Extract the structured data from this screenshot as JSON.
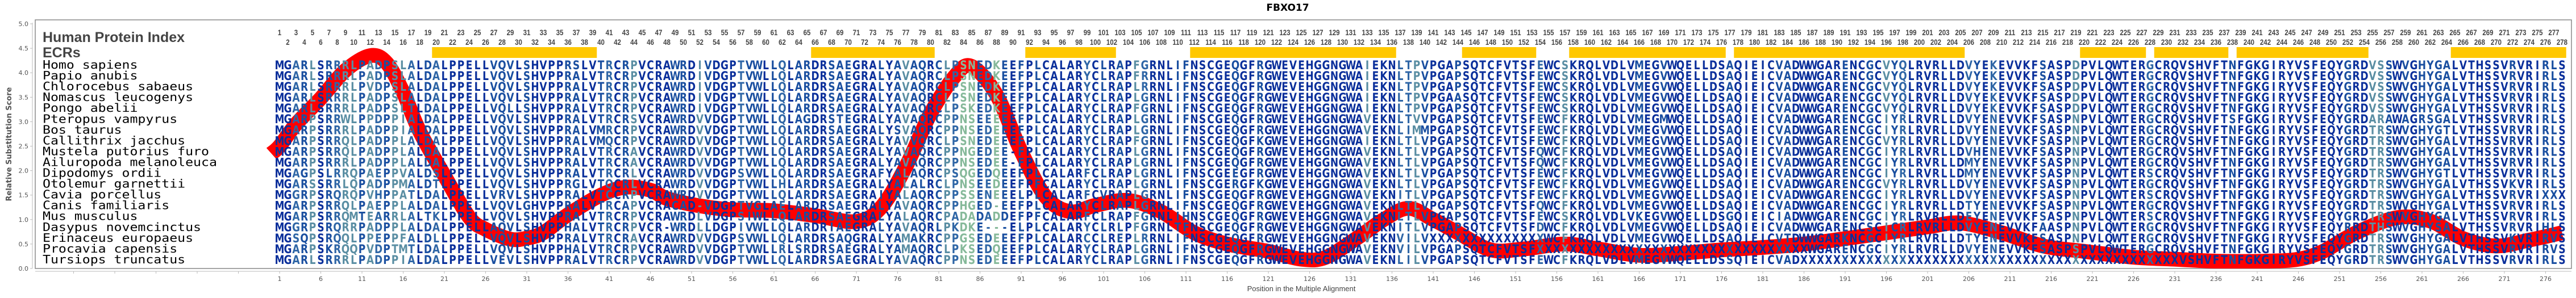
{
  "chart_data": {
    "type": "line",
    "title": "FBXO17",
    "xlabel": "Position in the Multiple Alignment",
    "ylabel": "Relative Substitution Score",
    "ylim": [
      0,
      5
    ],
    "y_ticks": [
      "0.0",
      "0.5",
      "1.0",
      "1.5",
      "2.0",
      "2.5",
      "3.0",
      "3.5",
      "4.0",
      "4.5",
      "5.0"
    ],
    "x_tick_start": 1,
    "x_tick_step": 5,
    "x_max": 278,
    "grid": false,
    "curve_color": "#ff0000",
    "series": [
      {
        "points": [
          [
            0,
            2.35
          ],
          [
            1,
            2.5
          ],
          [
            3,
            2.95
          ],
          [
            6,
            3.48
          ],
          [
            9,
            4.05
          ],
          [
            12,
            4.35
          ],
          [
            14,
            4.2
          ],
          [
            16,
            3.6
          ],
          [
            18,
            2.8
          ],
          [
            21,
            1.9
          ],
          [
            24,
            1.05
          ],
          [
            26,
            0.8
          ],
          [
            29,
            0.6
          ],
          [
            31,
            0.62
          ],
          [
            33,
            0.73
          ],
          [
            36,
            1.1
          ],
          [
            40,
            1.5
          ],
          [
            43,
            1.66
          ],
          [
            46,
            1.6
          ],
          [
            48,
            1.43
          ],
          [
            52,
            1.28
          ],
          [
            56,
            1.2
          ],
          [
            61,
            1.18
          ],
          [
            66,
            1.08
          ],
          [
            71,
            0.96
          ],
          [
            74,
            1.25
          ],
          [
            77,
            2.08
          ],
          [
            80,
            3.17
          ],
          [
            83,
            3.94
          ],
          [
            85,
            4.13
          ],
          [
            88,
            3.55
          ],
          [
            91,
            2.39
          ],
          [
            94,
            1.46
          ],
          [
            97,
            1.16
          ],
          [
            100,
            1.29
          ],
          [
            104,
            1.39
          ],
          [
            108,
            1.16
          ],
          [
            112,
            0.73
          ],
          [
            116,
            0.5
          ],
          [
            121,
            0.35
          ],
          [
            125,
            0.19
          ],
          [
            128,
            0.23
          ],
          [
            132,
            0.65
          ],
          [
            135,
            1.0
          ],
          [
            138,
            1.23
          ],
          [
            141,
            1.0
          ],
          [
            144,
            0.73
          ],
          [
            148,
            0.38
          ],
          [
            152,
            0.4
          ],
          [
            157,
            0.5
          ],
          [
            161,
            0.4
          ],
          [
            166,
            0.27
          ],
          [
            171,
            0.31
          ],
          [
            176,
            0.38
          ],
          [
            181,
            0.43
          ],
          [
            186,
            0.5
          ],
          [
            191,
            0.61
          ],
          [
            196,
            0.73
          ],
          [
            201,
            0.85
          ],
          [
            205,
            0.93
          ],
          [
            210,
            0.73
          ],
          [
            215,
            0.46
          ],
          [
            220,
            0.35
          ],
          [
            226,
            0.23
          ],
          [
            231,
            0.19
          ],
          [
            236,
            0.15
          ],
          [
            242,
            0.15
          ],
          [
            246,
            0.19
          ],
          [
            249,
            0.35
          ],
          [
            253,
            0.73
          ],
          [
            258,
            1.04
          ],
          [
            262,
            0.97
          ],
          [
            266,
            0.61
          ],
          [
            270,
            0.46
          ],
          [
            274,
            0.58
          ],
          [
            278,
            0.73
          ]
        ]
      }
    ],
    "human_index_label": "Human Protein Index",
    "human_index_range": [
      1,
      278
    ],
    "ecr_label": "ECRs",
    "ecr_color": "#ffc800",
    "ecrs": [
      [
        20,
        39
      ],
      [
        66,
        80
      ],
      [
        92,
        102
      ],
      [
        112,
        136
      ],
      [
        145,
        153
      ],
      [
        158,
        176
      ],
      [
        178,
        205
      ],
      [
        220,
        227
      ],
      [
        229,
        237
      ],
      [
        239,
        254
      ],
      [
        265,
        278
      ]
    ],
    "residue_palette": [
      "#0a2f9b",
      "#1a4fa0",
      "#2f66a6",
      "#5a8ea3",
      "#86b99a"
    ],
    "alignment": [
      {
        "species": "Homo sapiens",
        "sequence": "MGARLSRRRLPADPSLALDALPPELLVQVLSHVPPRSLVTRCRPVCRAWRDIVDGPTVWLLQLARDRSAEGRALYAVAQRCLPSNEDKEEFPLCALARYCLRAPFGRNLIFNSCGEQGFRGWEVEHGGNGWAIEKNLTPVPGAPSQTCFVTSFEWCSKRQLVDLVMEGVWQELLDSAQIEICVADWWGARENCGCVYQLRVRLLDVYEKEVVKFSASPDPVLQWTERGCRQVSHVFTNFGKGIRYVSFEQYGRDVSSWVGHYGALVTHSSVRVRIRLS"
      },
      {
        "species": "Papio anubis",
        "sequence": "MGARLSRRRLPADPSLALDALPPELLVQVLSHVPPRALVTRCRPVCRAWRDIVDGPTVWLLQLARDRSAEGRALYAVAQRCLPSNEDKEEFPLCALARYCLRAPFRRNLIFNSCGEQGFRGWEVEHGGNGWAIEKNLTPVPGAPSQTCFVTSFEWCSKRQLVDLVMEGVWQELLDSAQIEICVADWWGARENCGCVYQLRVRLLDVYEKEVVKFSASPDPVLQWTERGCRQVSHVFTNFGKGIRYVSFEQYGRDVSSWVGHYGALVTHSSVRVRIRLS"
      },
      {
        "species": "Chlorocebus sabaeus",
        "sequence": "MGARLSRRRLPVDPSLALDALPPELLVQVLSHVPPRALVTRCRPVCRAWRDIVDGPTVWLLQLARDRSAEGRALYAVAQRCLPSNEDKEEFPLCALARYCLRAPLRRNLIFNSCGEQGFRGWEVEHGGNGWAIEKNLTPVPGAPSQTCFVTSFEWCSKRQLVDLVMEGVWQELLDSAQIEICVADWWGARENCGCVYQLRVRLLDVYEKEVVKFSASPDPVLQWTERGCRQVSHVFTNFGKGIRYVSFEQYGRDVSSWVGHYGALVTHSSVRVRIRLS"
      },
      {
        "species": "Nomascus leucogenys",
        "sequence": "MGARLSRRRLPADPSLALDALPPELLVQVLSHVPPRALVTRCRPVCRAWRDIVDGPTVWLLQLARDRSAEGRALYAVAQRCLPSNEDKEEFPLCALARYCLRAPLGRNLIFNSCGEQGFRGWEVEHGGNGWAIEKNLTPVPGAASQTCFVTSFEWCSKRQLVDLVMEGVWQELLDSAQIEICVADWWGARENCGCVYQLRVRLLDVYEKEVVKFSASPDPVLQWTERGCRQVSHVFTNFGKGIRYVSFEQYGRDVSSWVGHYGALVTHSSVRVRIRLS"
      },
      {
        "species": "Pongo abelii",
        "sequence": "MGARLSRRRLPADPSLTLDALPPELLVQLLSHVPPRALVTRCRPVCRAWRDIVDGPTVWLLQLARDRSAEGRALYAVAQRCLPSKEDKEEFPLCALARYCLRAPFGRNLIFNSCGEQGFRGWEVEHGGNGWAIEKNLTPVPGAPSQTCFVTSFEWCSKRQLVDLVMEGVWQELLDSAQIEICVADWWGARENCGCVYQLRVRLLDVYEKEVVKFSASPDPVLQWTERGCRQVSHVFTNFGKGIRYVSFEQYGRDVSSWVGHYGALVTHSSVRVRIRLS"
      },
      {
        "species": "Pteropus vampyrus",
        "sequence": "MGARPSRRWLPPDPPIALDALPPELLVQVLSHVPPRALVTRCRSVCRAWRDVVDGPTVWLLQLAGDRSTEGRALYAVAQRCPPNSEEEEEFPLCALARYCLRAPLGRNLIFNSCGEQGFRGWEVEHGGNGWAVEKNLTVVPGAPSQTCFVTSFEWCFKRQLVDLVMEGMWQELLDSAQIEICVADWWGARENCGCIYRLRVRLLDVYENEVVKFSASPNPVLQWTERGCRQVSHVFTSFGKGIRYVSFEQYGRDARAWAGRSGALVTHSSVRVRIRLS"
      },
      {
        "species": "Bos taurus",
        "sequence": "MGARPSRRRLPADPPIALDALPPELLVQVLSHVPPRALVMRCRPVCRAWRDVVDGPTVWLLQLARDRSAEGRALYSVAQRCPPNSEDEEEFPLCALARYCLRAPLGRNLIFNSCGEQGFRGWEVEHGGNGWAVEKNLIMMPGAPSQTCFVTSFEWCFKRQLVDLVMEGVWQELLDSAQIEICVADWWGARENCGCIYRLRVRLLDVYENEVVKFSASPNPVLQWTERGCRQVSHVFTNFGKGIRYVSFEQYGRDTRSWVGHYGTLVTHSSVRVRIRLS"
      },
      {
        "species": "Callithrix jacchus",
        "sequence": "MGARPSRRQLPADPPLALDALPPELLVQVLSHVPPRALVMQCRPVCRAWRDVVDGPTVWLLQLARDRSAEGRALYAVVQRCLPSNEDEEEFPLCALARYCLRAPFGRNLIFNSCGEQGFKGWEVEHGGNGWAIEKNLTLVPGAPSQTCFVTSFEWCFKRQLVDLVMEGVWQELLDSAQIEICVADWWGARENCGCVYRLRVRLLDVYENEVVKFSASPNPVLQWTERGCRQVSHVFTNFGKGIRYVSFEQYGRDTRSWVGHYGALVTHSSVRVRIRLS"
      },
      {
        "species": "Mustela putorius furo",
        "sequence": "MGARPSRRQLPADPPLALDALPPELLVQVLSHVPPRALVTRCRAVCRAWRDVVDGPTVWLLQLARDRSAEGRALYAVAQRCPPNGEDEE-FPLCALARYCLRAPLGRNLIFNSCGEQGFRGWEVEHGGNGWAVEKNLTLVPGAPSQTCFVTSFQWCFKRQLVDLVMEGVWQELLDSAQIEICVADWWGARENCGCIYRLRVRLLDVHENEVVKFSASPNPVLQWTERGCRQVSHVFTNFGKGIRYVSFEQYGRDTRSWVGHYGALVTHSSVRVRIRLS"
      },
      {
        "species": "Ailuropoda melanoleuca",
        "sequence": "MGARPSRRRLPADPPLALDALPPELLVQVLSHVPPRALVTRCRAVCRAWRDVVDGPTVWLLQLARDRSAEGRALYAVAQRCPPNSEDEE-FPLCALARYCLRAPLGRNLIFNSCGEQGFRGWEVEHGGNGWAVEKNLTLVPGAPSQTCFVTSFQWCFKRQLVDLVMEGVWQELLDSAQIEICVADWWGARENCGCIYRLRVRLLDMYENEVVKFSASPNPVLQWTERGCRQVSHVFTNFGKGIRYVSFEQYGRDTRSWVGHYGALVTHSSVRVRIRLS"
      },
      {
        "species": "Dipodomys ordii",
        "sequence": "MGAGPSLRRQPAEPPVALDSLPPELLVQVLSHVPPRALVTRCRLVCRAWRDVVDGPSVWLLQLARDRSAEGRAFYALAQRCPSQGEDQEEFPLCALARFCLRAPLGRNLIFNSCGEEGFRGWEVEHGGNGWAVEKNLTLVPGAPSQTCFVTSFEWCFKRQLVDLVMEGVWQELLDSAQIEICVADWWGARENCGCIYRLRVRLLDMYENEVVKFSASPNPVLQWTERSCRQVSHVFTNFGKGIRYVSFEQYGRDTRSWVGHYGTLVTHSSVRVRIRLS"
      },
      {
        "species": "Otolemur garnettii",
        "sequence": "MGARSSRRLQPADPPMALDTLPPELLVQVLSHVPPRGLVTQCRLVCRAWRDVVDGPTVWLLHLARDRSAEGRALYALALRCLPNSEEDEEFPFCALARYCLRAPLGRNLIFNSCGERGFKGWEVEHGGNGWAVEKNLTLVPGAPSQTCFVTSFEWCFKRQLVDLVMEGVWQELLDSAQIEICVADWWGARENCGCVYRLRVRLLDVYENEVVKFSASPNPVLQWTERGCRQVSHVFTNFGKGIRYVSFEQYGRDTRSWVGHYGALVTHSSVKVRIRLS"
      },
      {
        "species": "Cavia porcellus",
        "sequence": "MGGRPSRQRQPVHPPATLDALPPELLVRVLSHVPPRALVTCCRPVCRAWRDVVDGPTVWLLQLARDRSAEGRAIYALAQRCPPSSENEEELPLCALARFCVRAPLGRNLIFNSCGEQGFRGWEVEHGGNGWAVEKNITLVPGAPSQTCFVTSFEWCFKRQLVDLVMEGVWQELLDSAQIEICVADWWGARENCGCIYRLRVRLLDVYENEVVKFSASPNPVLQWTERSCRQVSHVFTNFGKGIRYVSFEQYGRDTRSWVGHYGALVTHSSVRVRIXXX"
      },
      {
        "species": "Canis familiaris",
        "sequence": "MGARPSRRQLPAEPPLALDALPPELLVQVLGHVPPRALVTRCAPVCRACAD-VDGPTVGLAELARDRSAEGRALYAVAQRCPPHGED-EEFPLCALARYCLRAPLGRNLIFNSCGEQGFRGWEVEHGGNGWAVEKNLTLVPGAPSQTCFVTSFQWCFKRQLVDLVMEGVWQELLDSAQIEICVADWWGARENCGCIYRLRVRLLDTYENEVVKFSASPNPVLQWTERGCRQVSHVFTNFGKGIRYVSFEQYGRDTRSWVGHYGALVTHSSVRVRIRLS"
      },
      {
        "species": "Mus musculus",
        "sequence": "MGARPSRRQMTEARRLALTKLPPELLVQVLSHVPPRALVTRCRPVCRAWRDLVDGPSIWLLQLARDRSAEGRALYALAQRCPADADADDEFPFCALARFCLRAPFGRNLIHNSCGEQGFRGWEVEHGGNGWAVEKNLTLVPGAPSQTCFVTSFEWCSKRQLVDLVKEGVWQELLDSGQIEICIADWWGARENCGCIYRLRVRLLDEYENEVVKFSASPNPVLQWTERSCRQVSHVFTNFGKGIRYVSFEQYGRDTRSWVGHYGALVTHSSVRVRIRLS"
      },
      {
        "species": "Dasypus novemcinctus",
        "sequence": "MGGRPSRQRRPADPPLALDALPPELLAQVLSHVPPHALVTRCRPVCR-WRDLLDGPIVWLLQLARDRIAEGRALYAVAQRLPKDKE---ELPLCALARYCLRLPFGRNLTFNSCGEQGFRGWEVEHGGNGWAVEKNITLVPGAPSQTCFVTSFDWCFKRQLVDLVMEGVWQELLDSAQIEICVADWWGARENCSCICRLRVRLLDVYENEVVKFAASPNPVLQWTERGCRQVSHVFTNFGKGIRYVSFEQYRRDTHSWVGHYSALVTHSSVRVRIHLS"
      },
      {
        "species": "Erinaceus europaeus",
        "sequence": "MGSQPSRQQLPPEPPFALDLLPPELLVQVLSHVPPRALVTRCRAVCRAWRDVVDGPSVWLLQLARDRSAQGRALYAMAKRCPPGSEDEEEFPLCALARCCLREPLRRNLIFNSCGEQGFRGWEVEHGGNGWAVEKNVILVXXXXXXXXXXXXXXWCFKRQLVDLVMEGVWQELLDSAQIEICVTDWWGARKNCGCIYRLRVRLLDTYENEVVKFSASPNPVLQWTERGCRQVSHVFTNFGKGIRYVSFEQYGRDTRSWVGHYGALVTHSSVKVRIRVS"
      },
      {
        "species": "Procavia capensis",
        "sequence": "MGARPSKRQQPVDPTMTLDALPPELLVQVLSHVPPHALVTRCRPVCRAWRDVVDGPTVWLLRLSRDRSAEGRALYAMAQRCLPKSEDQEEFPLCALARYCLRAPLGRNLIFNSCGEQGFRGWEVEHGGNGWAVEKNVILVPGAPSQTCFVTSFXXXXXXXXXXXXXXXXXXXXXXXXXXXXXXXXXWGARENCGCIYRLRVRLLDVYENEVVKFSASPSPVLQWTERGCRQVSHVFTNFGKGIRYVSFEQYGRDTRSWVGHYGALVTHSSVRVRIRVS"
      },
      {
        "species": "Tursiops truncatus",
        "sequence": "MGARLSRRRLPADPPIALDALPPELLVEVLSHVPPRALVTRCRPVCRAWRDVVDGPTVWLLQLARDRSAEGRALYAVAQRCPPNSEDEEEFPLCALARYCLRAPLGRNLIFNSCGEQGFRGWEVEHGGNGWAVEKNLILVPGAPSQTCFVTSFEWCFKRQLVDLVMEGVWQELLDSSQIEICVADXXXXXXXXXXXXXXXXXXXXXXXXXXXXXXXXXXXXXXXXXXXXXXVSHVFTNFGKGIRYVSFEQYGRDTRSWVGHYGALVTHSSVRVRIRLS"
      }
    ]
  }
}
